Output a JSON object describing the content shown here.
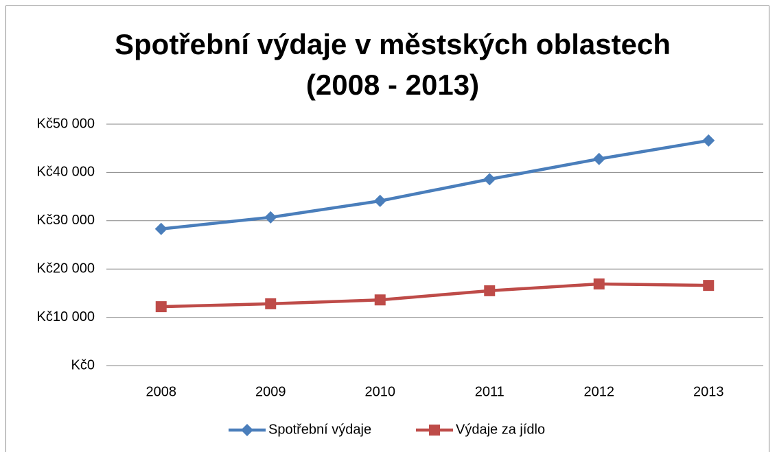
{
  "chart_data": {
    "type": "line",
    "title": [
      "Spotřební výdaje v městských oblastech",
      "(2008 - 2013)"
    ],
    "categories": [
      "2008",
      "2009",
      "2010",
      "2011",
      "2012",
      "2013"
    ],
    "series": [
      {
        "name": "Spotřební výdaje",
        "color": "#4a7ebb",
        "marker": "diamond",
        "values": [
          28300,
          30700,
          34100,
          38600,
          42800,
          46600
        ]
      },
      {
        "name": "Výdaje za jídlo",
        "color": "#be4b48",
        "marker": "square",
        "values": [
          12200,
          12800,
          13600,
          15500,
          16900,
          16600
        ]
      }
    ],
    "ylim": [
      0,
      50000
    ],
    "yticks": [
      {
        "value": 0,
        "label": "Kč0"
      },
      {
        "value": 10000,
        "label": "Kč10 000"
      },
      {
        "value": 20000,
        "label": "Kč20 000"
      },
      {
        "value": 30000,
        "label": "Kč30 000"
      },
      {
        "value": 40000,
        "label": "Kč40 000"
      },
      {
        "value": 50000,
        "label": "Kč50 000"
      }
    ],
    "grid": true,
    "legend": "bottom"
  }
}
